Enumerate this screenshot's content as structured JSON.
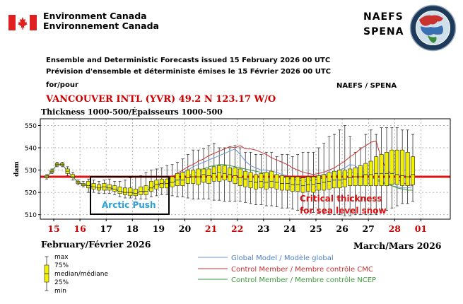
{
  "header": {
    "org_en": "Environment Canada",
    "org_fr": "Environnement Canada",
    "naefs": "NAEFS",
    "spena": "SPENA",
    "issued_en": "Ensemble and Deterministic Forecasts issued 15 February 2026 00 UTC",
    "issued_fr": "Prévision d'ensemble et déterministe émises le 15 Février 2026 00 UTC",
    "for_pour": "for/pour",
    "naefs_spena": "NAEFS / SPENA",
    "station": "VANCOUVER INTL (YVR) 49.2 N  123.17 W/O",
    "thickness_label": "Thickness 1000-500/Épaisseurs 1000-500"
  },
  "colors": {
    "box_fill": "#f2f200",
    "critical_line": "#dd1111",
    "global_line": "#6c94d4",
    "cmc_line": "#c83232",
    "ncep_line": "#3c9a3c",
    "annotation_blue": "#2a9fd6",
    "weekend_day": "#cc0000"
  },
  "chart_data": {
    "type": "box",
    "ylabel": "dam",
    "ylim": [
      508,
      553
    ],
    "yticks": [
      510,
      520,
      530,
      540,
      550
    ],
    "grid": true,
    "day_labels": [
      {
        "label": "15",
        "weekend": true
      },
      {
        "label": "16",
        "weekend": true
      },
      {
        "label": "17",
        "weekend": false
      },
      {
        "label": "18",
        "weekend": false
      },
      {
        "label": "19",
        "weekend": false
      },
      {
        "label": "20",
        "weekend": false
      },
      {
        "label": "21",
        "weekend": true
      },
      {
        "label": "22",
        "weekend": true
      },
      {
        "label": "23",
        "weekend": false
      },
      {
        "label": "24",
        "weekend": false
      },
      {
        "label": "25",
        "weekend": false
      },
      {
        "label": "26",
        "weekend": false
      },
      {
        "label": "27",
        "weekend": false
      },
      {
        "label": "28",
        "weekend": true
      },
      {
        "label": "01",
        "weekend": true
      }
    ],
    "month_feb": "February/Février 2026",
    "month_mar": "March/Mars 2026",
    "critical_thickness": 527,
    "annotations": {
      "arctic_push": "Arctic Push",
      "critical_line1": "Critical thickness",
      "critical_line2": "for sea level snow"
    },
    "boxes": [
      {
        "min": 526,
        "q1": 526.5,
        "med": 527,
        "q3": 527.5,
        "max": 528
      },
      {
        "min": 528.5,
        "q1": 529,
        "med": 529.5,
        "q3": 530,
        "max": 530.5
      },
      {
        "min": 531.5,
        "q1": 532,
        "med": 532.5,
        "q3": 533,
        "max": 533.5
      },
      {
        "min": 531.5,
        "q1": 532,
        "med": 532.5,
        "q3": 533,
        "max": 533.5
      },
      {
        "min": 527.5,
        "q1": 528.5,
        "med": 529.5,
        "q3": 530.5,
        "max": 531.5
      },
      {
        "min": 525.5,
        "q1": 526.5,
        "med": 527,
        "q3": 528,
        "max": 529
      },
      {
        "min": 523.5,
        "q1": 524,
        "med": 524.5,
        "q3": 525,
        "max": 525.5
      },
      {
        "min": 522.5,
        "q1": 523,
        "med": 523.5,
        "q3": 524,
        "max": 525
      },
      {
        "min": 520,
        "q1": 522,
        "med": 523,
        "q3": 525,
        "max": 526
      },
      {
        "min": 520,
        "q1": 521.5,
        "med": 522.5,
        "q3": 524,
        "max": 525.5
      },
      {
        "min": 519.5,
        "q1": 521,
        "med": 522,
        "q3": 523.5,
        "max": 525
      },
      {
        "min": 519.5,
        "q1": 521,
        "med": 522.5,
        "q3": 524,
        "max": 525.5
      },
      {
        "min": 519.5,
        "q1": 521,
        "med": 522,
        "q3": 523.5,
        "max": 526
      },
      {
        "min": 519,
        "q1": 520.5,
        "med": 521.5,
        "q3": 523,
        "max": 525
      },
      {
        "min": 518,
        "q1": 519.5,
        "med": 520.5,
        "q3": 522.5,
        "max": 525
      },
      {
        "min": 517.5,
        "q1": 519,
        "med": 520,
        "q3": 522,
        "max": 525.5
      },
      {
        "min": 517.5,
        "q1": 518.5,
        "med": 520,
        "q3": 522,
        "max": 526.5
      },
      {
        "min": 517,
        "q1": 518.5,
        "med": 519.5,
        "q3": 521.5,
        "max": 527
      },
      {
        "min": 517,
        "q1": 519,
        "med": 520.5,
        "q3": 522.5,
        "max": 527.5
      },
      {
        "min": 517,
        "q1": 519,
        "med": 520.5,
        "q3": 523,
        "max": 529
      },
      {
        "min": 518,
        "q1": 520.5,
        "med": 522,
        "q3": 525,
        "max": 530
      },
      {
        "min": 518.5,
        "q1": 521.5,
        "med": 523.5,
        "q3": 525.5,
        "max": 530.5
      },
      {
        "min": 519,
        "q1": 522,
        "med": 524,
        "q3": 526,
        "max": 531
      },
      {
        "min": 519,
        "q1": 522,
        "med": 524,
        "q3": 526,
        "max": 532
      },
      {
        "min": 518.5,
        "q1": 522.5,
        "med": 524.5,
        "q3": 527,
        "max": 532.5
      },
      {
        "min": 518,
        "q1": 523,
        "med": 525.5,
        "q3": 528.5,
        "max": 533.5
      },
      {
        "min": 518,
        "q1": 523,
        "med": 525.5,
        "q3": 529,
        "max": 535
      },
      {
        "min": 517.5,
        "q1": 524,
        "med": 526.5,
        "q3": 530,
        "max": 537
      },
      {
        "min": 517,
        "q1": 524,
        "med": 527,
        "q3": 530,
        "max": 539
      },
      {
        "min": 517,
        "q1": 523.5,
        "med": 527,
        "q3": 530.5,
        "max": 539
      },
      {
        "min": 517,
        "q1": 524.5,
        "med": 528,
        "q3": 530.5,
        "max": 539.5
      },
      {
        "min": 517,
        "q1": 524,
        "med": 527.5,
        "q3": 530.5,
        "max": 541
      },
      {
        "min": 516.5,
        "q1": 525,
        "med": 528.5,
        "q3": 531.5,
        "max": 542
      },
      {
        "min": 516.5,
        "q1": 525,
        "med": 529,
        "q3": 532,
        "max": 540
      },
      {
        "min": 516,
        "q1": 525.5,
        "med": 528.5,
        "q3": 532,
        "max": 540
      },
      {
        "min": 516,
        "q1": 525,
        "med": 528,
        "q3": 531,
        "max": 540
      },
      {
        "min": 516,
        "q1": 524,
        "med": 527.5,
        "q3": 531,
        "max": 541
      },
      {
        "min": 516,
        "q1": 523,
        "med": 526.5,
        "q3": 530.5,
        "max": 540
      },
      {
        "min": 515.5,
        "q1": 522.5,
        "med": 526,
        "q3": 529.5,
        "max": 538
      },
      {
        "min": 515,
        "q1": 522,
        "med": 525,
        "q3": 529,
        "max": 538
      },
      {
        "min": 514.5,
        "q1": 521.5,
        "med": 524.5,
        "q3": 528,
        "max": 537
      },
      {
        "min": 514.5,
        "q1": 522,
        "med": 525,
        "q3": 528.5,
        "max": 537
      },
      {
        "min": 514,
        "q1": 521.5,
        "med": 524.5,
        "q3": 529,
        "max": 538
      },
      {
        "min": 514,
        "q1": 522,
        "med": 525,
        "q3": 529.5,
        "max": 538
      },
      {
        "min": 513.5,
        "q1": 521.5,
        "med": 524.5,
        "q3": 528,
        "max": 536
      },
      {
        "min": 513,
        "q1": 521,
        "med": 524,
        "q3": 527.5,
        "max": 537
      },
      {
        "min": 513,
        "q1": 521,
        "med": 524,
        "q3": 527,
        "max": 537
      },
      {
        "min": 512.5,
        "q1": 520.5,
        "med": 523.5,
        "q3": 527,
        "max": 536
      },
      {
        "min": 512,
        "q1": 520.5,
        "med": 523.5,
        "q3": 527,
        "max": 537
      },
      {
        "min": 512,
        "q1": 520,
        "med": 523,
        "q3": 526.5,
        "max": 538
      },
      {
        "min": 511.5,
        "q1": 520.5,
        "med": 523.5,
        "q3": 527,
        "max": 538
      },
      {
        "min": 511,
        "q1": 520,
        "med": 523.5,
        "q3": 527,
        "max": 538
      },
      {
        "min": 510.5,
        "q1": 521,
        "med": 524,
        "q3": 527.5,
        "max": 540
      },
      {
        "min": 510.5,
        "q1": 521,
        "med": 524.5,
        "q3": 528,
        "max": 542
      },
      {
        "min": 510,
        "q1": 521.5,
        "med": 525,
        "q3": 529,
        "max": 545
      },
      {
        "min": 510,
        "q1": 522,
        "med": 525.5,
        "q3": 529.5,
        "max": 546
      },
      {
        "min": 510,
        "q1": 522,
        "med": 525.5,
        "q3": 530,
        "max": 548
      },
      {
        "min": 509.5,
        "q1": 522.5,
        "med": 526,
        "q3": 530,
        "max": 550
      },
      {
        "min": 509.5,
        "q1": 523,
        "med": 526.5,
        "q3": 530.5,
        "max": 545
      },
      {
        "min": 510,
        "q1": 523,
        "med": 527,
        "q3": 531,
        "max": 538
      },
      {
        "min": 510,
        "q1": 523,
        "med": 527,
        "q3": 532,
        "max": 540
      },
      {
        "min": 510,
        "q1": 523,
        "med": 528,
        "q3": 533,
        "max": 546
      },
      {
        "min": 510,
        "q1": 523,
        "med": 528,
        "q3": 534,
        "max": 548
      },
      {
        "min": 510,
        "q1": 523,
        "med": 528.5,
        "q3": 536,
        "max": 546
      },
      {
        "min": 512,
        "q1": 523,
        "med": 528.5,
        "q3": 537,
        "max": 549
      },
      {
        "min": 512,
        "q1": 523,
        "med": 528.5,
        "q3": 538,
        "max": 549
      },
      {
        "min": 513,
        "q1": 523.5,
        "med": 528.5,
        "q3": 539,
        "max": 549
      },
      {
        "min": 514,
        "q1": 523.5,
        "med": 528,
        "q3": 539,
        "max": 549
      },
      {
        "min": 515,
        "q1": 523,
        "med": 527.5,
        "q3": 539,
        "max": 548
      },
      {
        "min": 515,
        "q1": 523,
        "med": 527,
        "q3": 538,
        "max": 548
      },
      {
        "min": 516,
        "q1": 523.5,
        "med": 528,
        "q3": 536,
        "max": 546
      }
    ],
    "series": [
      {
        "name": "Global Model / Modèle global",
        "color": "#6c94d4",
        "values": [
          527,
          529.5,
          532.5,
          532.5,
          529.5,
          527,
          524.5,
          523.5,
          523,
          522.5,
          522,
          522.5,
          522,
          521.5,
          520.5,
          520,
          520,
          519.5,
          520.5,
          520.5,
          522,
          523.5,
          524,
          525,
          526,
          527.5,
          529,
          530,
          531.5,
          532.5,
          533.5,
          534.5,
          535.5,
          536.5,
          537.5,
          538.5,
          539.5,
          537,
          534,
          532,
          531,
          530,
          530,
          529.5,
          529,
          528,
          527.5,
          527,
          526.5,
          526,
          525.5,
          526.5,
          527.5,
          528,
          528.5,
          529,
          530,
          531,
          532.5,
          532,
          530,
          528.5,
          527,
          525.5,
          524.5,
          523.5,
          523,
          522.5,
          522,
          522,
          522.5
        ]
      },
      {
        "name": "Control Member / Membre contrôle CMC",
        "color": "#c83232",
        "values": [
          527,
          529.5,
          532.5,
          532.5,
          529.5,
          527,
          524.5,
          523.5,
          523,
          522.5,
          522,
          522.5,
          522,
          521.5,
          520.5,
          520,
          520,
          519.5,
          520.5,
          520.5,
          522,
          523.5,
          524,
          525.5,
          527,
          528.5,
          530,
          531.5,
          532.5,
          534,
          535,
          536.5,
          537.5,
          538.5,
          539.5,
          540.5,
          540,
          541,
          539.5,
          539.5,
          539,
          538,
          537,
          535.5,
          534.5,
          533.5,
          532.5,
          531,
          530,
          529,
          528.5,
          528,
          528.5,
          529,
          530,
          531,
          532.5,
          534,
          536,
          537.5,
          539.5,
          541,
          542.5,
          543,
          535,
          530,
          528,
          526,
          524.5,
          523.5,
          523
        ]
      },
      {
        "name": "Control Member / Membre contrôle NCEP",
        "color": "#3c9a3c",
        "values": [
          527,
          529.5,
          532.5,
          532.5,
          529.5,
          527,
          524.5,
          523.5,
          523,
          522.5,
          522,
          522.5,
          522,
          521.5,
          520.5,
          520,
          520,
          519.5,
          520.5,
          520.5,
          522,
          523,
          523.5,
          524,
          524.5,
          525.5,
          526.5,
          527.5,
          528.5,
          529.5,
          530.5,
          531.5,
          532,
          532.5,
          532.5,
          532,
          531.5,
          531,
          530.5,
          530,
          529.5,
          529,
          528.5,
          528,
          527.5,
          527,
          526.5,
          526,
          525.5,
          525,
          525,
          525.5,
          526,
          526.5,
          527,
          527.5,
          528,
          528.5,
          529,
          528.5,
          528,
          527.5,
          527,
          526,
          525,
          524,
          523,
          522,
          521.5,
          521,
          521
        ]
      }
    ]
  },
  "legend": {
    "max": "max",
    "q75": "75%",
    "median": "median/médiane",
    "q25": "25%",
    "min": "min"
  }
}
